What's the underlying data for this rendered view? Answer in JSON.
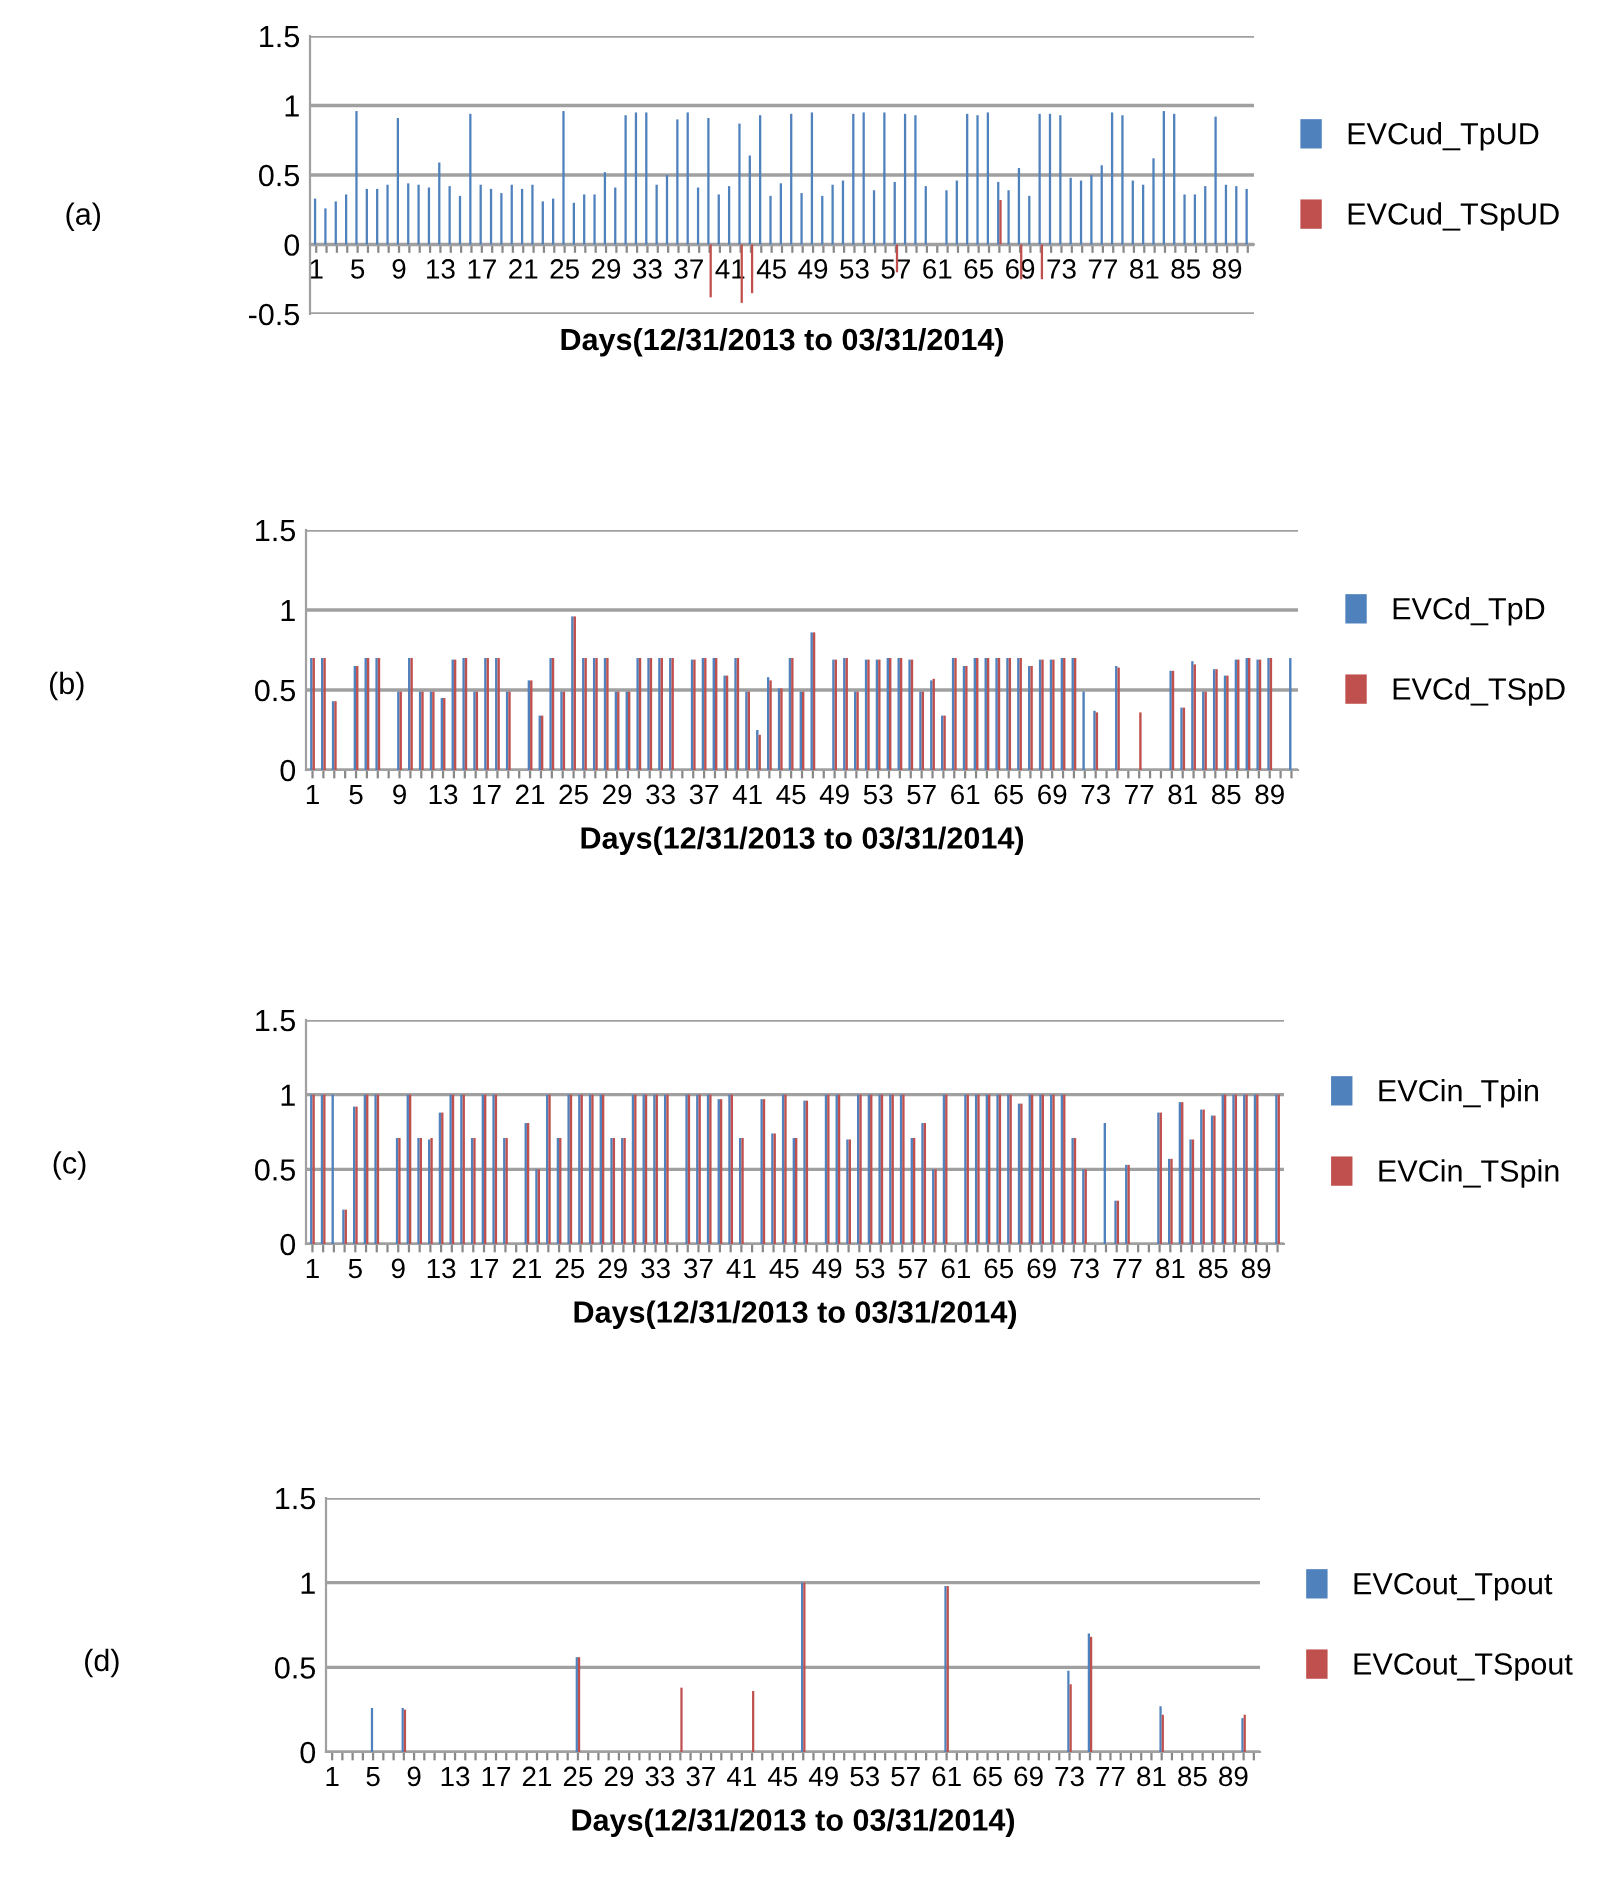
{
  "chart_data": [
    {
      "type": "bar",
      "xlabel": "Days(12/31/2013 to 03/31/2014)",
      "annotations": [
        "(a)"
      ],
      "categories": [
        "1",
        null,
        null,
        null,
        "5",
        null,
        null,
        null,
        "9",
        null,
        null,
        null,
        "13",
        null,
        null,
        null,
        "17",
        null,
        null,
        null,
        "21",
        null,
        null,
        null,
        "25",
        null,
        null,
        null,
        "29",
        null,
        null,
        null,
        "33",
        null,
        null,
        null,
        "37",
        null,
        null,
        null,
        "41",
        null,
        null,
        null,
        "45",
        null,
        null,
        null,
        "49",
        null,
        null,
        null,
        "53",
        null,
        null,
        null,
        "57",
        null,
        null,
        null,
        "61",
        null,
        null,
        null,
        "65",
        null,
        null,
        null,
        "69",
        null,
        null,
        null,
        "73",
        null,
        null,
        null,
        "77",
        null,
        null,
        null,
        "81",
        null,
        null,
        null,
        "85",
        null,
        null,
        null,
        "89",
        null,
        null
      ],
      "ylim": [
        -0.5,
        1.5
      ],
      "yticks": [
        -0.5,
        0,
        0.5,
        1,
        1.5
      ],
      "grid": "y",
      "legend": "right",
      "series": [
        {
          "name": "EVCud_TpUD",
          "color": "#4f81bd",
          "values": [
            0.33,
            0.26,
            0.31,
            0.36,
            0.96,
            0.4,
            0.4,
            0.43,
            0.91,
            0.44,
            0.43,
            0.41,
            0.59,
            0.42,
            0.35,
            0.94,
            0.43,
            0.4,
            0.37,
            0.43,
            0.4,
            0.43,
            0.31,
            0.33,
            0.96,
            0.3,
            0.36,
            0.36,
            0.52,
            0.41,
            0.93,
            0.95,
            0.95,
            0.43,
            0.5,
            0.9,
            0.95,
            0.41,
            0.91,
            0.36,
            0.42,
            0.87,
            0.64,
            0.93,
            0.35,
            0.44,
            0.94,
            0.37,
            0.95,
            0.35,
            0.43,
            0.46,
            0.94,
            0.95,
            0.39,
            0.95,
            0.45,
            0.94,
            0.93,
            0.42,
            0,
            0.39,
            0.46,
            0.94,
            0.93,
            0.95,
            0.45,
            0.39,
            0.55,
            0.35,
            0.94,
            0.94,
            0.93,
            0.48,
            0.46,
            0.5,
            0.57,
            0.95,
            0.93,
            0.46,
            0.43,
            0.62,
            0.96,
            0.94,
            0.36,
            0.36,
            0.42,
            0.92,
            0.43,
            0.42,
            0.4
          ]
        },
        {
          "name": "EVCud_TSpUD",
          "color": "#c0504d",
          "values": [
            0,
            0,
            0,
            0,
            0,
            0,
            0,
            0,
            0,
            0,
            0,
            0,
            0,
            0,
            0,
            0,
            0,
            0,
            0,
            0,
            0,
            0,
            0,
            0,
            0,
            0,
            0,
            0,
            0,
            0,
            0,
            0,
            0,
            0,
            0,
            0,
            0,
            0,
            -0.38,
            0,
            0,
            -0.42,
            -0.35,
            0,
            0,
            0,
            0,
            0,
            0,
            0,
            0,
            0,
            0,
            0,
            0,
            0,
            -0.2,
            0,
            0,
            0,
            0,
            0,
            0,
            0,
            0,
            0,
            0.32,
            0,
            -0.25,
            0,
            -0.25,
            0,
            0,
            0,
            0,
            0,
            0,
            0,
            0,
            0,
            0,
            0,
            0,
            0,
            0,
            0,
            0,
            0,
            0,
            0,
            0
          ]
        }
      ]
    },
    {
      "type": "bar",
      "xlabel": "Days(12/31/2013 to 03/31/2014)",
      "annotations": [
        "(b)"
      ],
      "categories": [
        "1",
        null,
        null,
        null,
        "5",
        null,
        null,
        null,
        "9",
        null,
        null,
        null,
        "13",
        null,
        null,
        null,
        "17",
        null,
        null,
        null,
        "21",
        null,
        null,
        null,
        "25",
        null,
        null,
        null,
        "29",
        null,
        null,
        null,
        "33",
        null,
        null,
        null,
        "37",
        null,
        null,
        null,
        "41",
        null,
        null,
        null,
        "45",
        null,
        null,
        null,
        "49",
        null,
        null,
        null,
        "53",
        null,
        null,
        null,
        "57",
        null,
        null,
        null,
        "61",
        null,
        null,
        null,
        "65",
        null,
        null,
        null,
        "69",
        null,
        null,
        null,
        "73",
        null,
        null,
        null,
        "77",
        null,
        null,
        null,
        "81",
        null,
        null,
        null,
        "85",
        null,
        null,
        null,
        "89",
        null,
        null
      ],
      "ylim": [
        0,
        1.5
      ],
      "yticks": [
        0,
        0.5,
        1,
        1.5
      ],
      "grid": "y",
      "legend": "right",
      "series": [
        {
          "name": "EVCd_TpD",
          "color": "#4f81bd",
          "values": [
            0.7,
            0.7,
            0.43,
            0,
            0.65,
            0.7,
            0.7,
            0,
            0.49,
            0.7,
            0.49,
            0.49,
            0.45,
            0.69,
            0.7,
            0.49,
            0.7,
            0.7,
            0.49,
            0,
            0.56,
            0.34,
            0.7,
            0.49,
            0.96,
            0.7,
            0.7,
            0.7,
            0.49,
            0.49,
            0.7,
            0.7,
            0.7,
            0.7,
            0,
            0.69,
            0.7,
            0.7,
            0.59,
            0.7,
            0.49,
            0.25,
            0.58,
            0.51,
            0.7,
            0.49,
            0.86,
            0,
            0.69,
            0.7,
            0.49,
            0.69,
            0.69,
            0.7,
            0.7,
            0.69,
            0.49,
            0.56,
            0.34,
            0.7,
            0.65,
            0.7,
            0.7,
            0.7,
            0.7,
            0.7,
            0.65,
            0.69,
            0.69,
            0.7,
            0.7,
            0.49,
            0.37,
            0,
            0.65,
            0,
            0,
            0,
            0,
            0.62,
            0.39,
            0.68,
            0.49,
            0.63,
            0.59,
            0.69,
            0.7,
            0.69,
            0.7,
            0,
            0.7
          ]
        },
        {
          "name": "EVCd_TSpD",
          "color": "#c0504d",
          "values": [
            0.7,
            0.7,
            0.43,
            0,
            0.65,
            0.7,
            0.7,
            0,
            0.49,
            0.7,
            0.49,
            0.49,
            0.45,
            0.69,
            0.7,
            0.49,
            0.7,
            0.7,
            0.49,
            0,
            0.56,
            0.34,
            0.7,
            0.49,
            0.96,
            0.7,
            0.7,
            0.7,
            0.49,
            0.49,
            0.7,
            0.7,
            0.7,
            0.7,
            0,
            0.69,
            0.7,
            0.7,
            0.59,
            0.7,
            0.49,
            0.22,
            0.56,
            0.51,
            0.7,
            0.49,
            0.86,
            0,
            0.69,
            0.7,
            0.49,
            0.69,
            0.69,
            0.7,
            0.7,
            0.69,
            0.49,
            0.57,
            0.34,
            0.7,
            0.65,
            0.7,
            0.7,
            0.7,
            0.7,
            0.7,
            0.65,
            0.69,
            0.69,
            0.7,
            0.7,
            0,
            0.36,
            0,
            0.64,
            0,
            0.36,
            0,
            0,
            0.62,
            0.39,
            0.66,
            0.49,
            0.63,
            0.59,
            0.69,
            0.7,
            0.69,
            0.7,
            0,
            0
          ]
        }
      ]
    },
    {
      "type": "bar",
      "xlabel": "Days(12/31/2013 to 03/31/2014)",
      "annotations": [
        "(c)"
      ],
      "categories": [
        "1",
        null,
        null,
        null,
        "5",
        null,
        null,
        null,
        "9",
        null,
        null,
        null,
        "13",
        null,
        null,
        null,
        "17",
        null,
        null,
        null,
        "21",
        null,
        null,
        null,
        "25",
        null,
        null,
        null,
        "29",
        null,
        null,
        null,
        "33",
        null,
        null,
        null,
        "37",
        null,
        null,
        null,
        "41",
        null,
        null,
        null,
        "45",
        null,
        null,
        null,
        "49",
        null,
        null,
        null,
        "53",
        null,
        null,
        null,
        "57",
        null,
        null,
        null,
        "61",
        null,
        null,
        null,
        "65",
        null,
        null,
        null,
        "69",
        null,
        null,
        null,
        "73",
        null,
        null,
        null,
        "77",
        null,
        null,
        null,
        "81",
        null,
        null,
        null,
        "85",
        null,
        null,
        null,
        "89",
        null,
        null
      ],
      "ylim": [
        0,
        1.5
      ],
      "yticks": [
        0,
        0.5,
        1,
        1.5
      ],
      "grid": "y",
      "legend": "right",
      "series": [
        {
          "name": "EVCin_Tpin",
          "color": "#4f81bd",
          "values": [
            1,
            1,
            1,
            0.23,
            0.92,
            1,
            1,
            0,
            0.71,
            1,
            0.71,
            0.7,
            0.88,
            1,
            1,
            0.71,
            1,
            1,
            0.71,
            0,
            0.81,
            0.5,
            1,
            0.71,
            1,
            1,
            1,
            1,
            0.71,
            0.71,
            1,
            1,
            1,
            1,
            0,
            1,
            1,
            1,
            0.97,
            1,
            0.71,
            0,
            0.97,
            0.74,
            1,
            0.71,
            0.96,
            0,
            1,
            1,
            0.7,
            1,
            1,
            1,
            1,
            1,
            0.71,
            0.81,
            0.5,
            1,
            0,
            1,
            1,
            1,
            1,
            1,
            0.94,
            1,
            1,
            1,
            1,
            0.71,
            0.5,
            0,
            0.81,
            0.29,
            0.53,
            0,
            0,
            0.88,
            0.57,
            0.95,
            0.7,
            0.9,
            0.86,
            1,
            1,
            1,
            1,
            0,
            1
          ]
        },
        {
          "name": "EVCin_TSpin",
          "color": "#c0504d",
          "values": [
            1,
            1,
            0,
            0.23,
            0.92,
            1,
            1,
            0,
            0.71,
            1,
            0.71,
            0.71,
            0.88,
            1,
            1,
            0.71,
            1,
            1,
            0.71,
            0,
            0.81,
            0.5,
            1,
            0.71,
            1,
            1,
            1,
            1,
            0.71,
            0.71,
            1,
            1,
            1,
            1,
            0,
            1,
            1,
            1,
            0.97,
            1,
            0.71,
            0,
            0.97,
            0.74,
            1,
            0.71,
            0.96,
            0,
            1,
            1,
            0.7,
            1,
            1,
            1,
            1,
            1,
            0.71,
            0.81,
            0.5,
            1,
            0,
            1,
            1,
            1,
            1,
            1,
            0.94,
            1,
            1,
            1,
            1,
            0.71,
            0.5,
            0,
            0,
            0.29,
            0.53,
            0,
            0,
            0.88,
            0.57,
            0.95,
            0.7,
            0.9,
            0.86,
            1,
            1,
            1,
            1,
            0,
            1
          ]
        }
      ]
    },
    {
      "type": "bar",
      "xlabel": "Days(12/31/2013 to 03/31/2014)",
      "annotations": [
        "(d)"
      ],
      "categories": [
        "1",
        null,
        null,
        null,
        "5",
        null,
        null,
        null,
        "9",
        null,
        null,
        null,
        "13",
        null,
        null,
        null,
        "17",
        null,
        null,
        null,
        "21",
        null,
        null,
        null,
        "25",
        null,
        null,
        null,
        "29",
        null,
        null,
        null,
        "33",
        null,
        null,
        null,
        "37",
        null,
        null,
        null,
        "41",
        null,
        null,
        null,
        "45",
        null,
        null,
        null,
        "49",
        null,
        null,
        null,
        "53",
        null,
        null,
        null,
        "57",
        null,
        null,
        null,
        "61",
        null,
        null,
        null,
        "65",
        null,
        null,
        null,
        "69",
        null,
        null,
        null,
        "73",
        null,
        null,
        null,
        "77",
        null,
        null,
        null,
        "81",
        null,
        null,
        null,
        "85",
        null,
        null,
        null,
        "89",
        null,
        null
      ],
      "ylim": [
        0,
        1.5
      ],
      "yticks": [
        0,
        0.5,
        1,
        1.5
      ],
      "grid": "y",
      "legend": "right",
      "series": [
        {
          "name": "EVCout_Tpout",
          "color": "#4f81bd",
          "values": [
            0,
            0,
            0,
            0,
            0.26,
            0,
            0,
            0.26,
            0,
            0,
            0,
            0,
            0,
            0,
            0,
            0,
            0,
            0,
            0,
            0,
            0,
            0,
            0,
            0,
            0.56,
            0,
            0,
            0,
            0,
            0,
            0,
            0,
            0,
            0,
            0,
            0,
            0,
            0,
            0,
            0,
            0,
            0,
            0,
            0,
            0,
            0,
            1.0,
            0,
            0,
            0,
            0,
            0,
            0,
            0,
            0,
            0,
            0,
            0,
            0,
            0,
            0.98,
            0,
            0,
            0,
            0,
            0,
            0,
            0,
            0,
            0,
            0,
            0,
            0.48,
            0,
            0.7,
            0,
            0,
            0,
            0,
            0,
            0,
            0.27,
            0,
            0,
            0,
            0,
            0,
            0,
            0,
            0.2,
            0
          ]
        },
        {
          "name": "EVCout_TSpout",
          "color": "#c0504d",
          "values": [
            0,
            0,
            0,
            0,
            0,
            0,
            0,
            0.25,
            0,
            0,
            0,
            0,
            0,
            0,
            0,
            0,
            0,
            0,
            0,
            0,
            0,
            0,
            0,
            0,
            0.56,
            0,
            0,
            0,
            0,
            0,
            0,
            0,
            0,
            0,
            0.38,
            0,
            0,
            0,
            0,
            0,
            0,
            0.36,
            0,
            0,
            0,
            0,
            1.0,
            0,
            0,
            0,
            0,
            0,
            0,
            0,
            0,
            0,
            0,
            0,
            0,
            0,
            0.98,
            0,
            0,
            0,
            0,
            0,
            0,
            0,
            0,
            0,
            0,
            0,
            0.4,
            0,
            0.68,
            0,
            0,
            0,
            0,
            0,
            0,
            0.22,
            0,
            0,
            0,
            0,
            0,
            0,
            0,
            0.22,
            0
          ]
        }
      ]
    }
  ]
}
